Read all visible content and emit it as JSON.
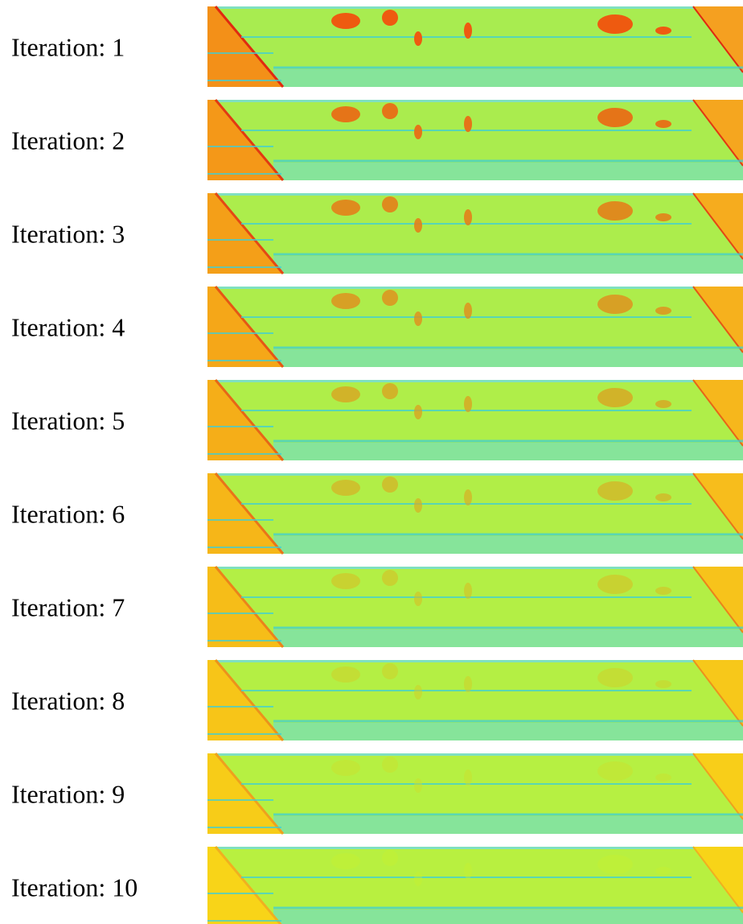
{
  "rows": [
    {
      "label": "Iteration: 1"
    },
    {
      "label": "Iteration: 2"
    },
    {
      "label": "Iteration: 3"
    },
    {
      "label": "Iteration: 4"
    },
    {
      "label": "Iteration: 5"
    },
    {
      "label": "Iteration: 6"
    },
    {
      "label": "Iteration: 7"
    },
    {
      "label": "Iteration: 8"
    },
    {
      "label": "Iteration: 9"
    },
    {
      "label": "Iteration: 10"
    }
  ]
}
